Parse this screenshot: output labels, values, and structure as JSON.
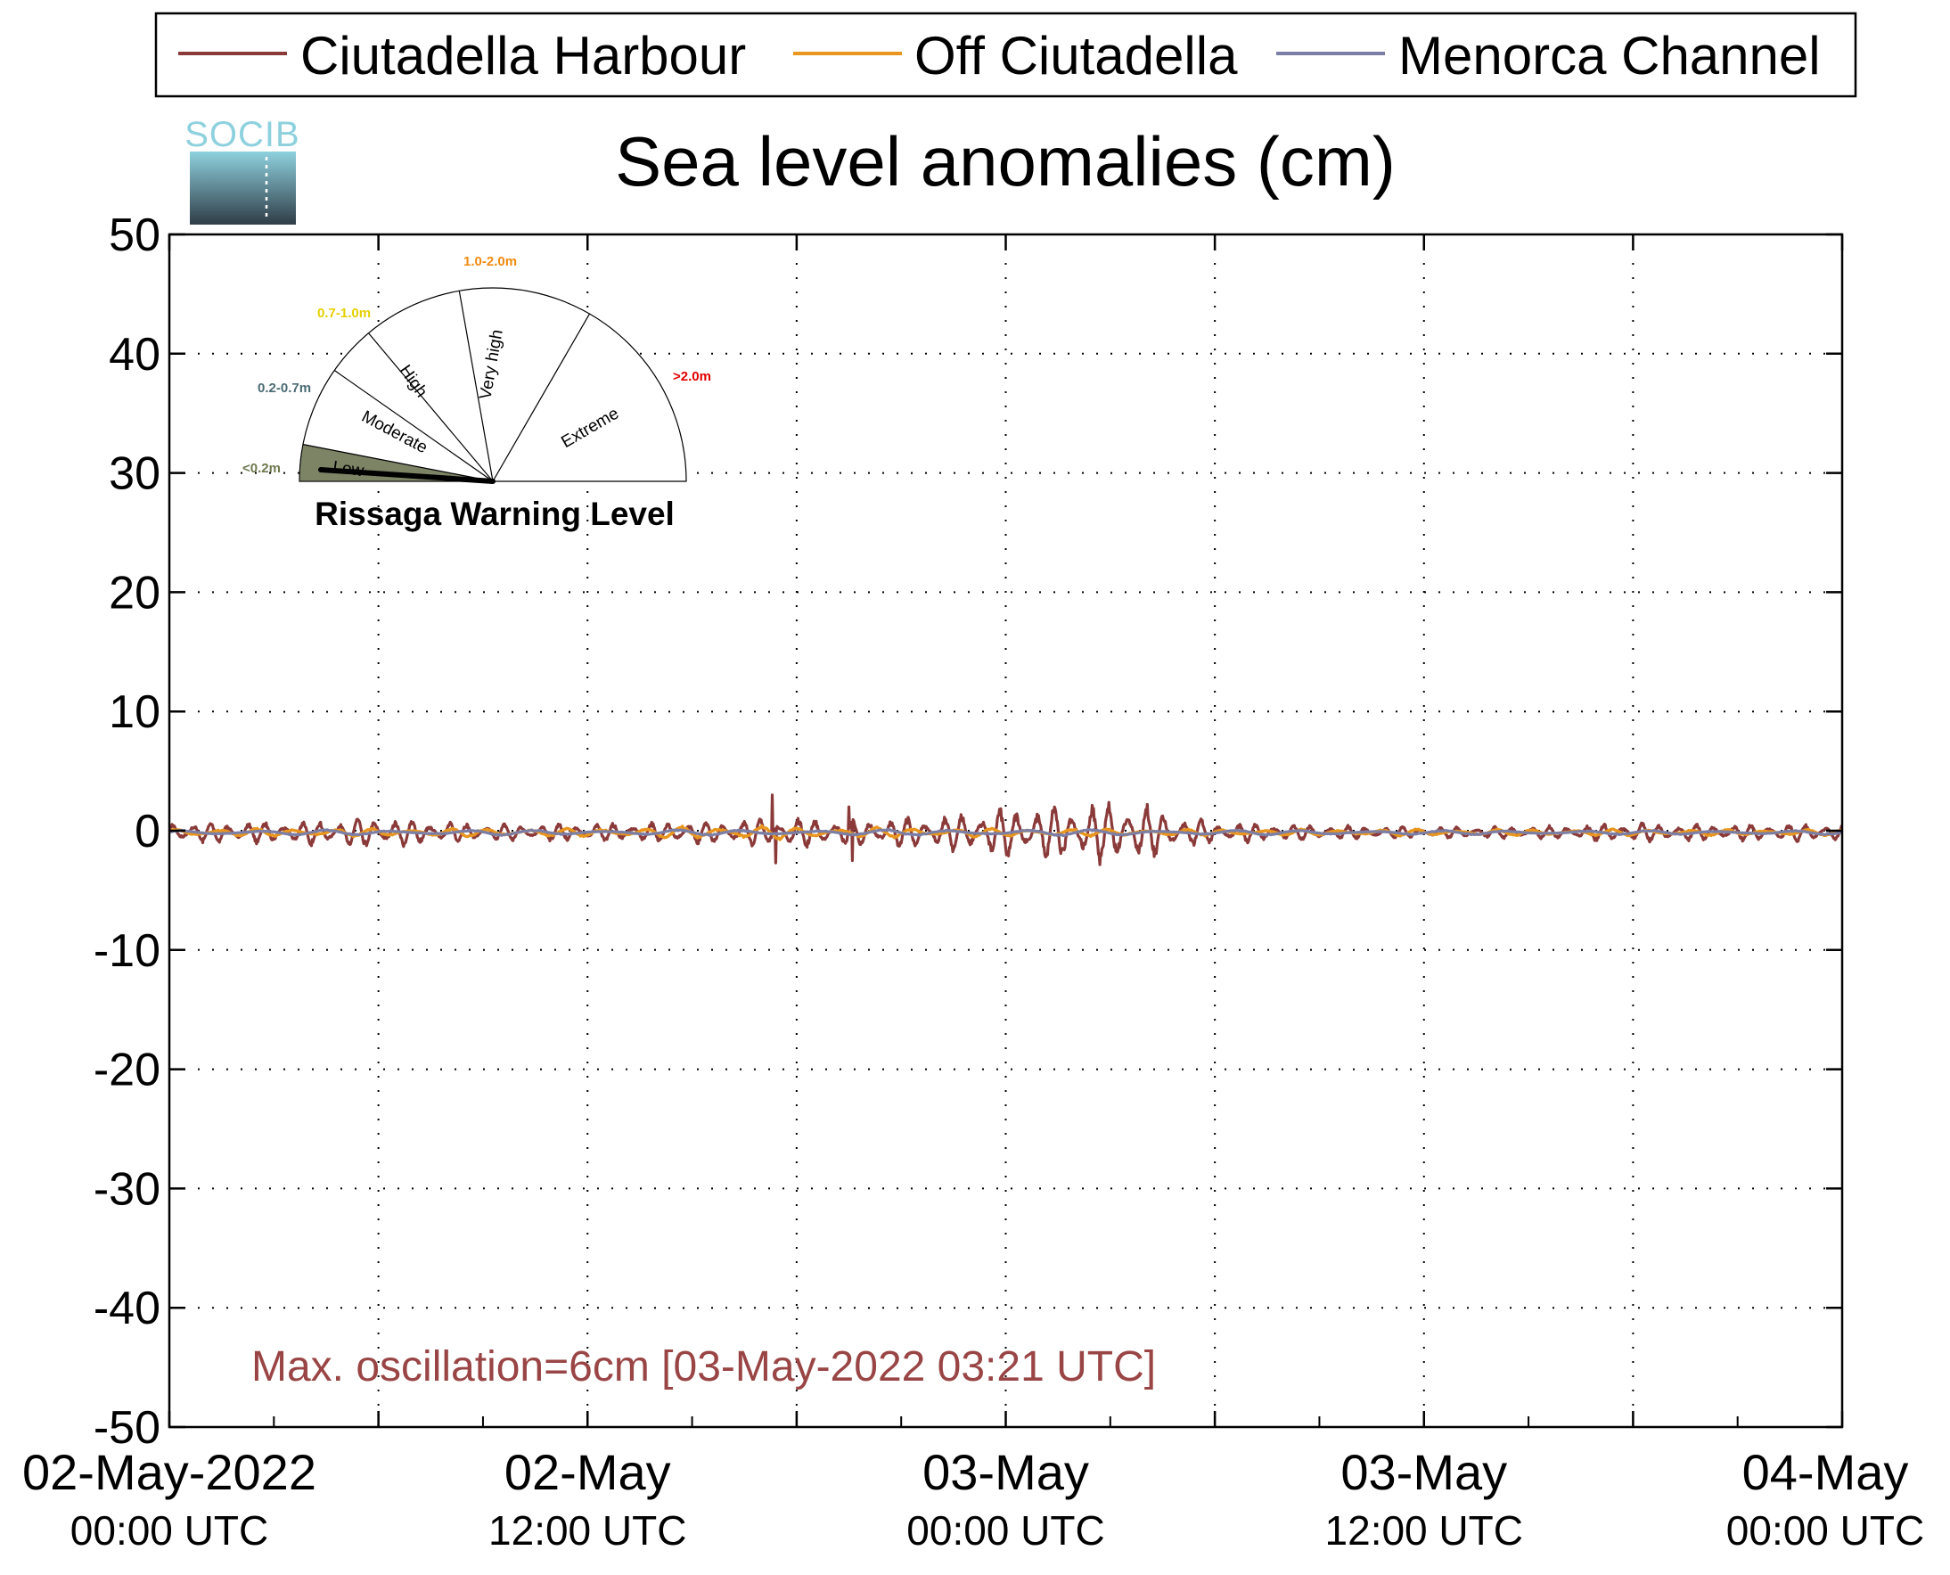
{
  "colors": {
    "ciutadella_harbour": "#8b3a3a",
    "off_ciutadella": "#e8961e",
    "menorca_channel": "#7b7fa6",
    "annotation": "#9a4545",
    "gauge_low_fill": "#7d8466",
    "logo_top": "#8ed1de",
    "logo_bottom": "#2f3d47"
  },
  "logo": {
    "text": "SOCIB"
  },
  "chart_data": {
    "type": "line",
    "title": "Sea level anomalies (cm)",
    "xlabel": "",
    "ylabel": "",
    "ylim": [
      -50,
      50
    ],
    "yticks": [
      50,
      40,
      30,
      20,
      10,
      0,
      -10,
      -20,
      -30,
      -40,
      -50
    ],
    "yticklabels": [
      "50",
      "40",
      "30",
      "20",
      "10",
      "0",
      "-10",
      "-20",
      "-30",
      "-40",
      "-50"
    ],
    "xrange": [
      "2022-05-02T00:00Z",
      "2022-05-04T00:00Z"
    ],
    "xtick_hours_minor": [
      0,
      6,
      12,
      18,
      24,
      30,
      36,
      42,
      48
    ],
    "xticklabels": [
      {
        "date": "02-May-2022",
        "time": "00:00 UTC"
      },
      {
        "date": "02-May",
        "time": "12:00 UTC"
      },
      {
        "date": "03-May",
        "time": "00:00 UTC"
      },
      {
        "date": "03-May",
        "time": "12:00 UTC"
      },
      {
        "date": "04-May",
        "time": "00:00 UTC"
      }
    ],
    "grid": true,
    "legend_placement": "top",
    "annotation": "Max. oscillation=6cm [03-May-2022 03:21 UTC]",
    "series": [
      {
        "name": "Ciutadella Harbour",
        "envelope_hours": [
          0,
          3,
          6,
          9,
          12,
          15,
          18,
          20,
          21,
          22,
          23,
          24,
          25,
          26,
          27,
          28,
          29,
          30,
          33,
          36,
          39,
          42,
          45,
          48
        ],
        "envelope_cm": [
          1.0,
          1.0,
          1.4,
          0.8,
          0.8,
          1.1,
          1.4,
          1.2,
          1.4,
          1.5,
          1.9,
          2.3,
          2.5,
          2.7,
          3.0,
          2.6,
          1.6,
          1.0,
          0.7,
          0.5,
          0.6,
          0.9,
          0.8,
          0.8
        ],
        "spikes": [
          {
            "hour": 17.3,
            "cm": 3.0
          },
          {
            "hour": 17.4,
            "cm": -2.7
          },
          {
            "hour": 19.5,
            "cm": 2.0
          },
          {
            "hour": 19.6,
            "cm": -2.5
          }
        ]
      },
      {
        "name": "Off Ciutadella",
        "envelope_hours": [
          0,
          6,
          12,
          17,
          18,
          24,
          30,
          36,
          42,
          48
        ],
        "envelope_cm": [
          0.4,
          0.4,
          0.4,
          0.7,
          0.5,
          0.4,
          0.3,
          0.3,
          0.3,
          0.3
        ]
      },
      {
        "name": "Menorca Channel",
        "envelope_hours": [
          0,
          12,
          24,
          36,
          48
        ],
        "envelope_cm": [
          0.25,
          0.25,
          0.3,
          0.2,
          0.2
        ]
      }
    ]
  },
  "gauge": {
    "title": "Rissaga Warning Level",
    "needle_level": "Low",
    "sectors": [
      {
        "label": "Low",
        "range": "<0.2m",
        "range_color": "#6d7a4f"
      },
      {
        "label": "Moderate",
        "range": "0.2-0.7m",
        "range_color": "#4a6b73"
      },
      {
        "label": "High",
        "range": "0.7-1.0m",
        "range_color": "#e5d000"
      },
      {
        "label": "Very high",
        "range": "1.0-2.0m",
        "range_color": "#f08a10"
      },
      {
        "label": "Extreme",
        "range": ">2.0m",
        "range_color": "#e00000"
      }
    ]
  }
}
